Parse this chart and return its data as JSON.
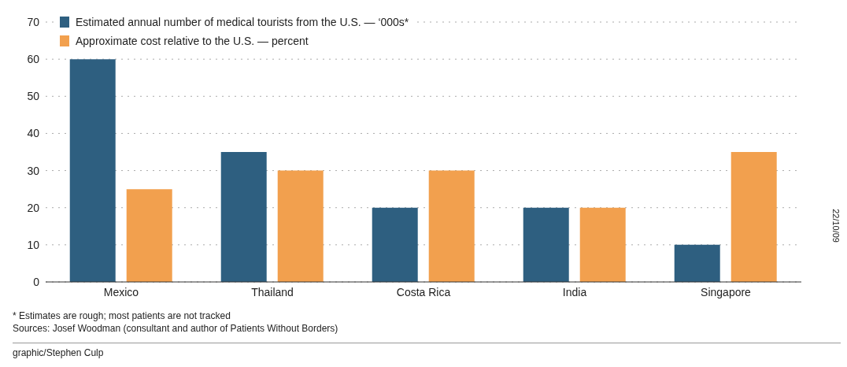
{
  "chart_data": {
    "type": "bar",
    "categories": [
      "Mexico",
      "Thailand",
      "Costa Rica",
      "India",
      "Singapore"
    ],
    "series": [
      {
        "name": "Estimated annual number of medical tourists from the U.S. — ‘000s*",
        "color": "#2e5f80",
        "values": [
          60,
          35,
          20,
          20,
          10
        ]
      },
      {
        "name": "Approximate cost relative to the U.S. — percent",
        "color": "#f2a04e",
        "values": [
          25,
          30,
          30,
          20,
          35
        ]
      }
    ],
    "ylim": [
      0,
      70
    ],
    "yticks": [
      0,
      10,
      20,
      30,
      40,
      50,
      60,
      70
    ],
    "grid": "y",
    "legend": "top left",
    "annotations": [
      "* Estimates are rough; most patients are not tracked",
      "Sources: Josef Woodman (consultant and author of Patients Without Borders)",
      "graphic/Stephen Culp",
      "22/10/09"
    ]
  }
}
